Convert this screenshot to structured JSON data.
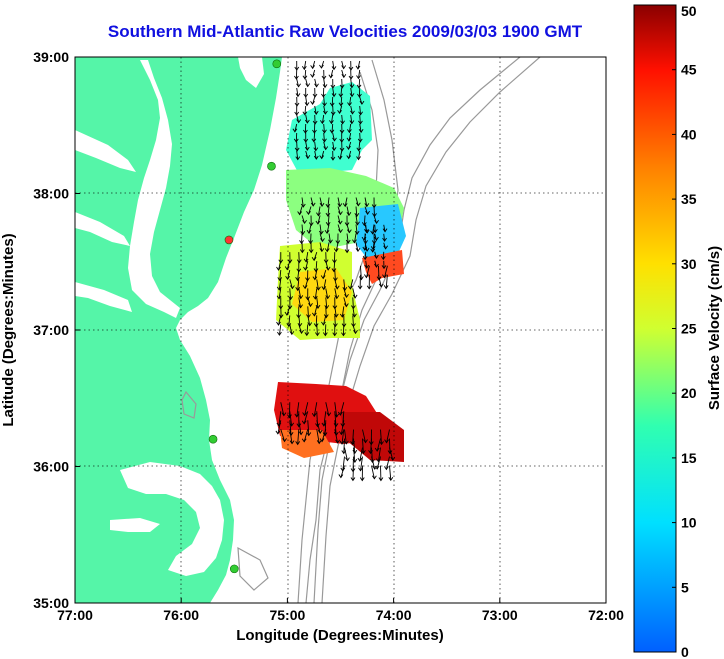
{
  "title": "Southern Mid-Atlantic Raw Velocities 2009/03/03 1900 GMT",
  "x_axis": {
    "label": "Longitude (Degrees:Minutes)",
    "ticks": [
      "77:00",
      "76:00",
      "75:00",
      "74:00",
      "73:00",
      "72:00"
    ]
  },
  "y_axis": {
    "label": "Latitude (Degrees:Minutes)",
    "ticks": [
      "39:00",
      "38:00",
      "37:00",
      "36:00",
      "35:00"
    ]
  },
  "colorbar": {
    "label": "Surface Velocity (cm/s)",
    "ticks": [
      "50",
      "45",
      "40",
      "35",
      "30",
      "25",
      "20",
      "15",
      "10",
      "5",
      "0"
    ],
    "min": 0,
    "max": 50
  },
  "colors": {
    "land": "#55f5a8",
    "title": "#1010e0",
    "bathymetry": "#999999"
  },
  "chart_data": {
    "type": "heatmap",
    "title": "Southern Mid-Atlantic Raw Velocities 2009/03/03 1900 GMT",
    "xlabel": "Longitude (Degrees:Minutes)",
    "ylabel": "Latitude (Degrees:Minutes)",
    "colorbar_label": "Surface Velocity (cm/s)",
    "xlim": [
      -77,
      -72
    ],
    "ylim": [
      35,
      39
    ],
    "clim": [
      0,
      50
    ],
    "grid": true,
    "regions": [
      {
        "lon": [
          -74.95,
          -74.3
        ],
        "lat": [
          38.3,
          39.0
        ],
        "velocity": 15
      },
      {
        "lon": [
          -74.9,
          -74.1
        ],
        "lat": [
          37.6,
          38.0
        ],
        "velocity": 20
      },
      {
        "lon": [
          -74.3,
          -74.05
        ],
        "lat": [
          37.5,
          37.8
        ],
        "velocity": 8
      },
      {
        "lon": [
          -74.35,
          -74.05
        ],
        "lat": [
          37.4,
          37.5
        ],
        "velocity": 40
      },
      {
        "lon": [
          -75.1,
          -74.5
        ],
        "lat": [
          37.4,
          37.6
        ],
        "velocity": 23
      },
      {
        "lon": [
          -75.1,
          -74.35
        ],
        "lat": [
          37.0,
          37.4
        ],
        "velocity": 26
      },
      {
        "lon": [
          -75.1,
          -74.4
        ],
        "lat": [
          36.25,
          36.5
        ],
        "velocity": 47
      },
      {
        "lon": [
          -74.5,
          -74.0
        ],
        "lat": [
          36.0,
          36.3
        ],
        "velocity": 45
      }
    ],
    "stations": [
      {
        "lon": -75.1,
        "lat": 38.95,
        "color": "#33cc33"
      },
      {
        "lon": -75.15,
        "lat": 38.2,
        "color": "#33cc33"
      },
      {
        "lon": -75.55,
        "lat": 37.66,
        "color": "#ff3333"
      },
      {
        "lon": -75.7,
        "lat": 36.2,
        "color": "#33cc33"
      },
      {
        "lon": -75.5,
        "lat": 35.25,
        "color": "#33cc33"
      }
    ]
  }
}
